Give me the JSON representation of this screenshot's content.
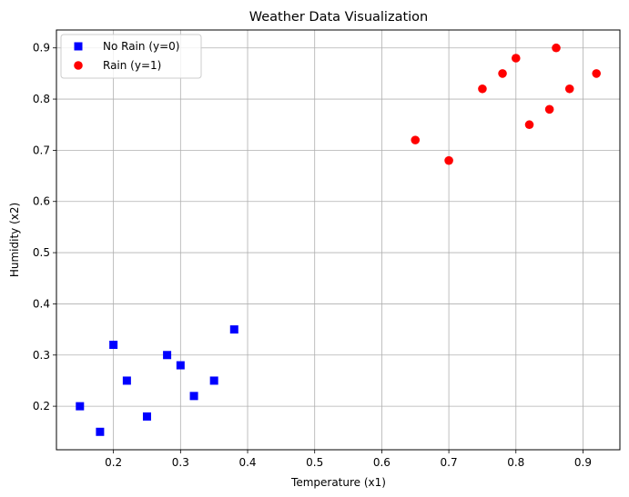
{
  "chart_data": {
    "type": "scatter",
    "title": "Weather Data Visualization",
    "xlabel": "Temperature (x1)",
    "ylabel": "Humidity (x2)",
    "xlim": [
      0.115,
      0.955
    ],
    "ylim": [
      0.115,
      0.935
    ],
    "xticks": [
      0.2,
      0.3,
      0.4,
      0.5,
      0.6,
      0.7,
      0.8,
      0.9
    ],
    "yticks": [
      0.2,
      0.3,
      0.4,
      0.5,
      0.6,
      0.7,
      0.8,
      0.9
    ],
    "grid": true,
    "legend_position": "top-left",
    "series": [
      {
        "name": "No Rain (y=0)",
        "marker": "square",
        "color": "#0000ff",
        "points": [
          [
            0.15,
            0.2
          ],
          [
            0.18,
            0.15
          ],
          [
            0.2,
            0.32
          ],
          [
            0.22,
            0.25
          ],
          [
            0.25,
            0.18
          ],
          [
            0.28,
            0.3
          ],
          [
            0.3,
            0.28
          ],
          [
            0.32,
            0.22
          ],
          [
            0.35,
            0.25
          ],
          [
            0.38,
            0.35
          ]
        ]
      },
      {
        "name": "Rain (y=1)",
        "marker": "circle",
        "color": "#ff0000",
        "points": [
          [
            0.65,
            0.72
          ],
          [
            0.7,
            0.68
          ],
          [
            0.75,
            0.82
          ],
          [
            0.78,
            0.85
          ],
          [
            0.8,
            0.88
          ],
          [
            0.82,
            0.75
          ],
          [
            0.85,
            0.78
          ],
          [
            0.86,
            0.9
          ],
          [
            0.88,
            0.82
          ],
          [
            0.92,
            0.85
          ]
        ]
      }
    ]
  }
}
